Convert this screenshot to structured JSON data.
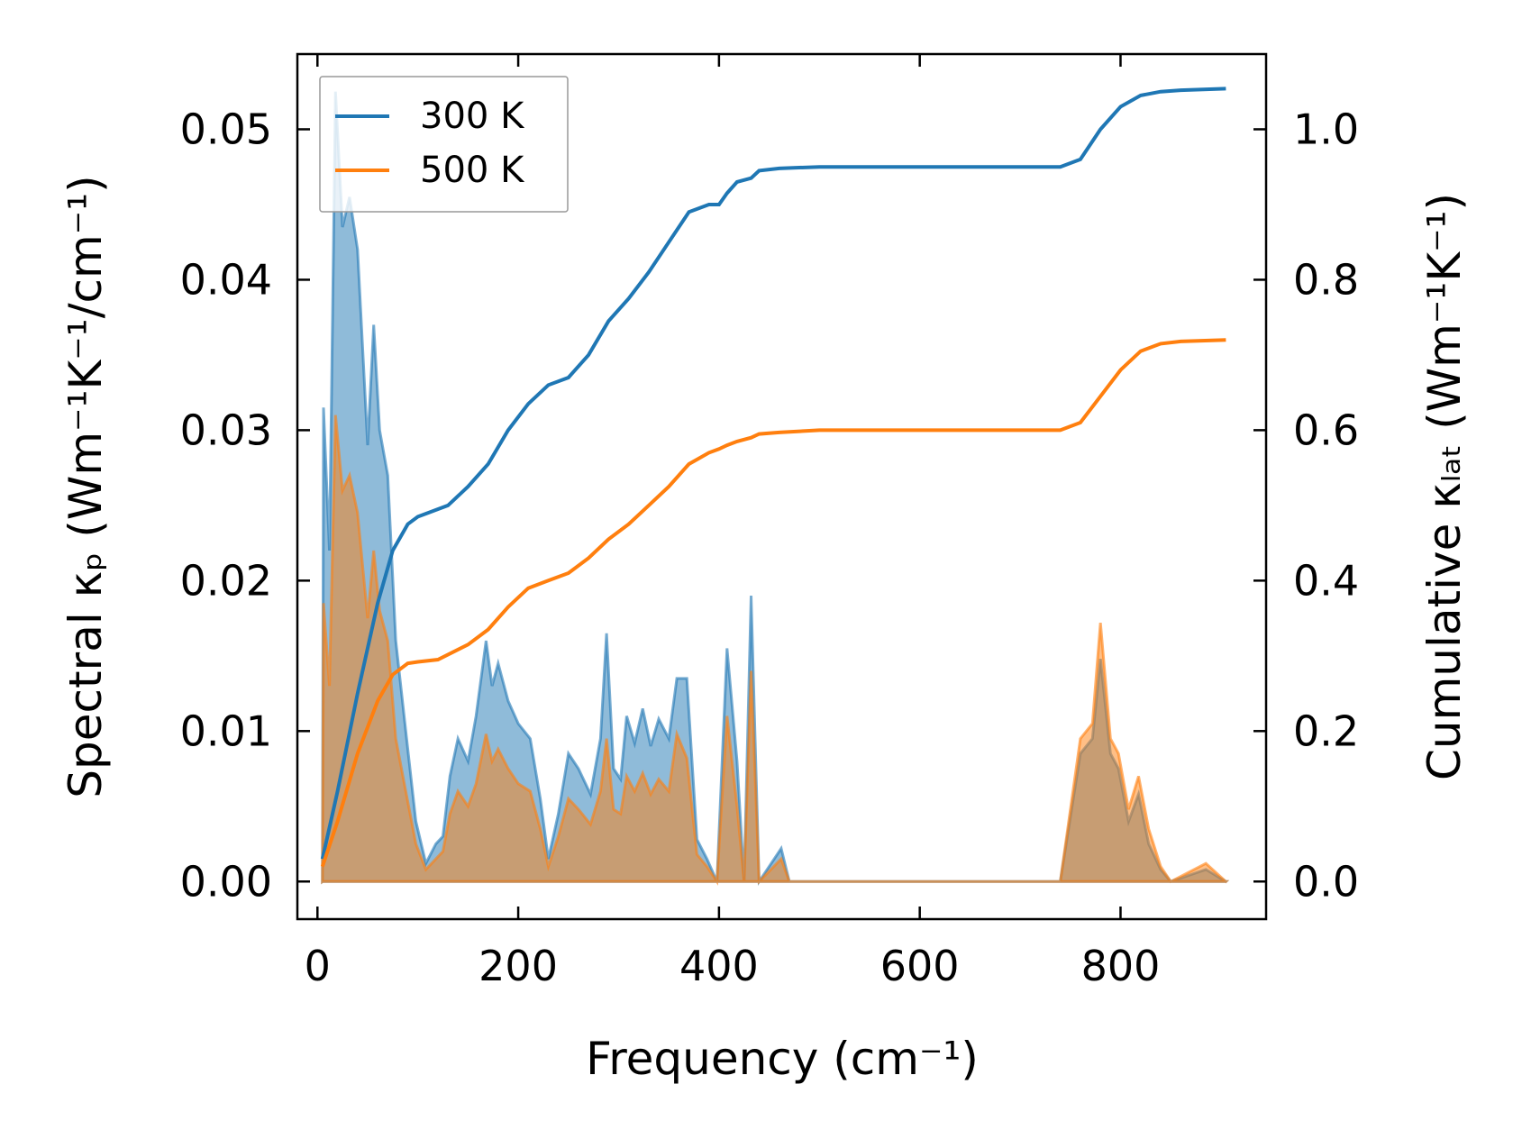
{
  "chart_data": {
    "type": "area",
    "xlabel": "Frequency (cm⁻¹)",
    "ylabel_left": "Spectral κₚ (Wm⁻¹K⁻¹/cm⁻¹)",
    "ylabel_right": "Cumulative κₗₐₜ (Wm⁻¹K⁻¹)",
    "xlim": [
      -20,
      945
    ],
    "ylim_left": [
      -0.0025,
      0.055
    ],
    "ylim_right": [
      -0.05,
      1.1
    ],
    "xticks": [
      "0",
      "200",
      "400",
      "600",
      "800"
    ],
    "yticks_left": [
      "0.00",
      "0.01",
      "0.02",
      "0.03",
      "0.04",
      "0.05"
    ],
    "yticks_right": [
      "0.0",
      "0.2",
      "0.4",
      "0.6",
      "0.8",
      "1.0"
    ],
    "legend_position": "top-left",
    "colors": {
      "300K": "#1f77b4",
      "500K": "#ff7f0e"
    },
    "series": [
      {
        "name": "300 K",
        "spectral": [
          [
            5,
            0
          ],
          [
            6,
            0.0315
          ],
          [
            12,
            0.022
          ],
          [
            18,
            0.0525
          ],
          [
            25,
            0.0435
          ],
          [
            32,
            0.0455
          ],
          [
            40,
            0.042
          ],
          [
            50,
            0.029
          ],
          [
            56,
            0.037
          ],
          [
            62,
            0.03
          ],
          [
            70,
            0.027
          ],
          [
            78,
            0.016
          ],
          [
            88,
            0.01
          ],
          [
            98,
            0.004
          ],
          [
            108,
            0.0012
          ],
          [
            118,
            0.0025
          ],
          [
            125,
            0.003
          ],
          [
            132,
            0.007
          ],
          [
            140,
            0.0095
          ],
          [
            150,
            0.008
          ],
          [
            158,
            0.011
          ],
          [
            168,
            0.016
          ],
          [
            174,
            0.013
          ],
          [
            180,
            0.0145
          ],
          [
            190,
            0.012
          ],
          [
            200,
            0.0105
          ],
          [
            212,
            0.0095
          ],
          [
            222,
            0.0055
          ],
          [
            230,
            0.0015
          ],
          [
            240,
            0.0045
          ],
          [
            250,
            0.0085
          ],
          [
            260,
            0.0075
          ],
          [
            272,
            0.0058
          ],
          [
            282,
            0.0095
          ],
          [
            288,
            0.0165
          ],
          [
            295,
            0.0075
          ],
          [
            302,
            0.0068
          ],
          [
            308,
            0.011
          ],
          [
            316,
            0.0092
          ],
          [
            324,
            0.0115
          ],
          [
            332,
            0.009
          ],
          [
            340,
            0.0108
          ],
          [
            350,
            0.0095
          ],
          [
            358,
            0.0135
          ],
          [
            368,
            0.0135
          ],
          [
            378,
            0.0028
          ],
          [
            388,
            0.0015
          ],
          [
            398,
            0
          ],
          [
            408,
            0.0155
          ],
          [
            418,
            0.008
          ],
          [
            425,
            0
          ],
          [
            432,
            0.019
          ],
          [
            440,
            0
          ],
          [
            462,
            0.0022
          ],
          [
            470,
            0
          ],
          [
            740,
            0
          ],
          [
            760,
            0.0085
          ],
          [
            772,
            0.0095
          ],
          [
            780,
            0.0148
          ],
          [
            790,
            0.0085
          ],
          [
            798,
            0.0075
          ],
          [
            808,
            0.004
          ],
          [
            818,
            0.0058
          ],
          [
            828,
            0.0025
          ],
          [
            840,
            0.0008
          ],
          [
            850,
            0
          ],
          [
            885,
            0.0008
          ],
          [
            905,
            0
          ]
        ],
        "cumulative": [
          [
            5,
            0.03
          ],
          [
            20,
            0.12
          ],
          [
            40,
            0.25
          ],
          [
            60,
            0.37
          ],
          [
            75,
            0.44
          ],
          [
            90,
            0.475
          ],
          [
            100,
            0.485
          ],
          [
            110,
            0.49
          ],
          [
            130,
            0.5
          ],
          [
            150,
            0.525
          ],
          [
            170,
            0.555
          ],
          [
            190,
            0.6
          ],
          [
            210,
            0.635
          ],
          [
            230,
            0.66
          ],
          [
            250,
            0.67
          ],
          [
            270,
            0.7
          ],
          [
            290,
            0.745
          ],
          [
            310,
            0.775
          ],
          [
            330,
            0.81
          ],
          [
            350,
            0.85
          ],
          [
            370,
            0.89
          ],
          [
            390,
            0.9
          ],
          [
            400,
            0.9
          ],
          [
            408,
            0.915
          ],
          [
            418,
            0.93
          ],
          [
            432,
            0.935
          ],
          [
            440,
            0.945
          ],
          [
            460,
            0.948
          ],
          [
            500,
            0.95
          ],
          [
            740,
            0.95
          ],
          [
            760,
            0.96
          ],
          [
            780,
            1.0
          ],
          [
            800,
            1.03
          ],
          [
            820,
            1.045
          ],
          [
            840,
            1.05
          ],
          [
            860,
            1.052
          ],
          [
            905,
            1.054
          ]
        ]
      },
      {
        "name": "500 K",
        "spectral": [
          [
            5,
            0
          ],
          [
            6,
            0.0185
          ],
          [
            12,
            0.013
          ],
          [
            18,
            0.031
          ],
          [
            25,
            0.026
          ],
          [
            32,
            0.027
          ],
          [
            40,
            0.0245
          ],
          [
            50,
            0.0175
          ],
          [
            56,
            0.022
          ],
          [
            62,
            0.018
          ],
          [
            70,
            0.016
          ],
          [
            78,
            0.0095
          ],
          [
            88,
            0.006
          ],
          [
            98,
            0.0025
          ],
          [
            108,
            0.0008
          ],
          [
            118,
            0.0015
          ],
          [
            125,
            0.002
          ],
          [
            132,
            0.0045
          ],
          [
            140,
            0.006
          ],
          [
            150,
            0.005
          ],
          [
            158,
            0.0065
          ],
          [
            168,
            0.0098
          ],
          [
            174,
            0.008
          ],
          [
            180,
            0.0088
          ],
          [
            190,
            0.0075
          ],
          [
            200,
            0.0065
          ],
          [
            212,
            0.006
          ],
          [
            222,
            0.0035
          ],
          [
            230,
            0.001
          ],
          [
            240,
            0.003
          ],
          [
            250,
            0.0055
          ],
          [
            260,
            0.0048
          ],
          [
            272,
            0.0038
          ],
          [
            282,
            0.006
          ],
          [
            288,
            0.0095
          ],
          [
            295,
            0.0048
          ],
          [
            302,
            0.0045
          ],
          [
            308,
            0.007
          ],
          [
            316,
            0.006
          ],
          [
            324,
            0.0072
          ],
          [
            332,
            0.0058
          ],
          [
            340,
            0.0068
          ],
          [
            350,
            0.006
          ],
          [
            358,
            0.0098
          ],
          [
            368,
            0.0082
          ],
          [
            378,
            0.0018
          ],
          [
            388,
            0.001
          ],
          [
            398,
            0
          ],
          [
            408,
            0.011
          ],
          [
            418,
            0.005
          ],
          [
            425,
            0
          ],
          [
            432,
            0.014
          ],
          [
            440,
            0
          ],
          [
            462,
            0.0015
          ],
          [
            470,
            0
          ],
          [
            740,
            0
          ],
          [
            760,
            0.0095
          ],
          [
            772,
            0.0105
          ],
          [
            780,
            0.0172
          ],
          [
            790,
            0.0095
          ],
          [
            798,
            0.0085
          ],
          [
            808,
            0.0048
          ],
          [
            818,
            0.007
          ],
          [
            828,
            0.0035
          ],
          [
            840,
            0.001
          ],
          [
            850,
            0
          ],
          [
            885,
            0.0012
          ],
          [
            905,
            0
          ]
        ],
        "cumulative": [
          [
            5,
            0.02
          ],
          [
            20,
            0.08
          ],
          [
            40,
            0.17
          ],
          [
            60,
            0.24
          ],
          [
            75,
            0.275
          ],
          [
            90,
            0.29
          ],
          [
            100,
            0.292
          ],
          [
            120,
            0.295
          ],
          [
            150,
            0.315
          ],
          [
            170,
            0.335
          ],
          [
            190,
            0.365
          ],
          [
            210,
            0.39
          ],
          [
            230,
            0.4
          ],
          [
            250,
            0.41
          ],
          [
            270,
            0.43
          ],
          [
            290,
            0.455
          ],
          [
            310,
            0.475
          ],
          [
            330,
            0.5
          ],
          [
            350,
            0.525
          ],
          [
            370,
            0.555
          ],
          [
            390,
            0.57
          ],
          [
            400,
            0.575
          ],
          [
            408,
            0.58
          ],
          [
            418,
            0.585
          ],
          [
            432,
            0.59
          ],
          [
            440,
            0.595
          ],
          [
            460,
            0.597
          ],
          [
            500,
            0.6
          ],
          [
            740,
            0.6
          ],
          [
            760,
            0.61
          ],
          [
            780,
            0.645
          ],
          [
            800,
            0.68
          ],
          [
            820,
            0.705
          ],
          [
            840,
            0.715
          ],
          [
            860,
            0.718
          ],
          [
            905,
            0.72
          ]
        ]
      }
    ]
  }
}
